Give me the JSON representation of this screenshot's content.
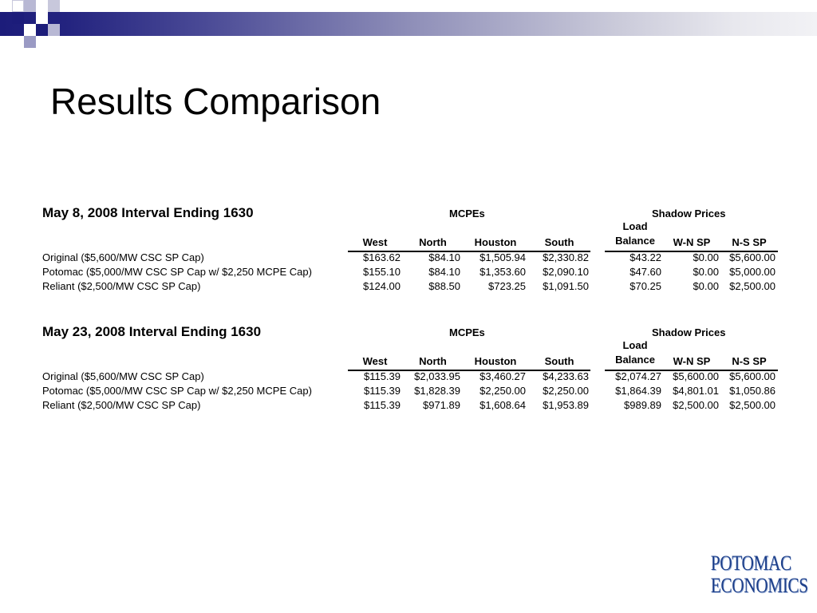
{
  "slide": {
    "title": "Results Comparison"
  },
  "brand": {
    "logo_line1": "POTOMAC",
    "logo_line2": "ECONOMICS",
    "accent": "#1c1c7a",
    "logo_color": "#1d3f8a"
  },
  "tables": [
    {
      "heading": "May 8, 2008 Interval Ending 1630",
      "group_mcpes": "MCPEs",
      "group_shadow": "Shadow Prices",
      "col_west": "West",
      "col_north": "North",
      "col_houston": "Houston",
      "col_south": "South",
      "col_lb_1": "Load",
      "col_lb_2": "Balance",
      "col_wn": "W-N SP",
      "col_ns": "N-S SP",
      "rows": [
        {
          "label": "Original ($5,600/MW CSC SP Cap)",
          "west": "$163.62",
          "north": "$84.10",
          "houston": "$1,505.94",
          "south": "$2,330.82",
          "lb": "$43.22",
          "wn": "$0.00",
          "ns": "$5,600.00"
        },
        {
          "label": "Potomac ($5,000/MW CSC SP Cap w/ $2,250 MCPE Cap)",
          "west": "$155.10",
          "north": "$84.10",
          "houston": "$1,353.60",
          "south": "$2,090.10",
          "lb": "$47.60",
          "wn": "$0.00",
          "ns": "$5,000.00"
        },
        {
          "label": "Reliant ($2,500/MW CSC SP Cap)",
          "west": "$124.00",
          "north": "$88.50",
          "houston": "$723.25",
          "south": "$1,091.50",
          "lb": "$70.25",
          "wn": "$0.00",
          "ns": "$2,500.00"
        }
      ]
    },
    {
      "heading": "May 23, 2008 Interval Ending 1630",
      "group_mcpes": "MCPEs",
      "group_shadow": "Shadow Prices",
      "col_west": "West",
      "col_north": "North",
      "col_houston": "Houston",
      "col_south": "South",
      "col_lb_1": "Load",
      "col_lb_2": "Balance",
      "col_wn": "W-N SP",
      "col_ns": "N-S SP",
      "rows": [
        {
          "label": "Original ($5,600/MW CSC SP Cap)",
          "west": "$115.39",
          "north": "$2,033.95",
          "houston": "$3,460.27",
          "south": "$4,233.63",
          "lb": "$2,074.27",
          "wn": "$5,600.00",
          "ns": "$5,600.00"
        },
        {
          "label": "Potomac ($5,000/MW CSC SP Cap w/ $2,250 MCPE Cap)",
          "west": "$115.39",
          "north": "$1,828.39",
          "houston": "$2,250.00",
          "south": "$2,250.00",
          "lb": "$1,864.39",
          "wn": "$4,801.01",
          "ns": "$1,050.86"
        },
        {
          "label": "Reliant ($2,500/MW CSC SP Cap)",
          "west": "$115.39",
          "north": "$971.89",
          "houston": "$1,608.64",
          "south": "$1,953.89",
          "lb": "$989.89",
          "wn": "$2,500.00",
          "ns": "$2,500.00"
        }
      ]
    }
  ]
}
